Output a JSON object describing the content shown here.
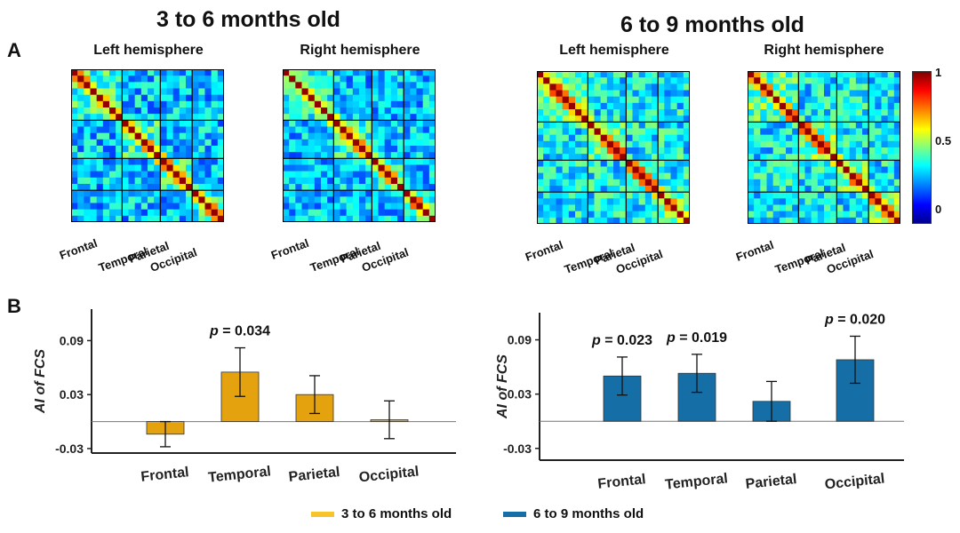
{
  "panel_a": {
    "label": "A",
    "groups": [
      {
        "title": "3 to 6 months old",
        "hemispheres": [
          "Left hemisphere",
          "Right hemisphere"
        ]
      },
      {
        "title": "6 to 9 months old",
        "hemispheres": [
          "Left hemisphere",
          "Right hemisphere"
        ]
      }
    ],
    "regions": [
      "Frontal",
      "Temporal",
      "Parietal",
      "Occipital"
    ],
    "colorbar": {
      "ticks": [
        "1",
        "0.5",
        "0"
      ]
    }
  },
  "panel_b": {
    "label": "B"
  },
  "colors": {
    "group1": "#E5A20F",
    "group2": "#156FA6",
    "legend_group1": "#F6C42C",
    "legend_group2": "#156FA6"
  },
  "legend": [
    "3 to 6 months old",
    "6 to 9 months old"
  ],
  "chart_data": [
    {
      "type": "heatmap",
      "title": "3 to 6 months old — Left hemisphere",
      "regions": [
        "Frontal",
        "Temporal",
        "Parietal",
        "Occipital"
      ],
      "region_sizes": [
        8,
        6,
        5,
        5
      ],
      "value_range": [
        0,
        1
      ]
    },
    {
      "type": "heatmap",
      "title": "3 to 6 months old — Right hemisphere",
      "regions": [
        "Frontal",
        "Temporal",
        "Parietal",
        "Occipital"
      ],
      "region_sizes": [
        8,
        6,
        5,
        5
      ],
      "value_range": [
        0,
        1
      ]
    },
    {
      "type": "heatmap",
      "title": "6 to 9 months old — Left hemisphere",
      "regions": [
        "Frontal",
        "Temporal",
        "Parietal",
        "Occipital"
      ],
      "region_sizes": [
        8,
        6,
        5,
        5
      ],
      "value_range": [
        0,
        1
      ]
    },
    {
      "type": "heatmap",
      "title": "6 to 9 months old — Right hemisphere",
      "regions": [
        "Frontal",
        "Temporal",
        "Parietal",
        "Occipital"
      ],
      "region_sizes": [
        8,
        6,
        5,
        5
      ],
      "value_range": [
        0,
        1
      ]
    },
    {
      "type": "bar",
      "title": "3 to 6 months old",
      "ylabel": "AI of FCS",
      "categories": [
        "Frontal",
        "Temporal",
        "Parietal",
        "Occipital"
      ],
      "values": [
        -0.014,
        0.055,
        0.03,
        0.002
      ],
      "error": [
        0.014,
        0.027,
        0.021,
        0.021
      ],
      "ylim": [
        -0.035,
        0.125
      ],
      "yticks": [
        -0.03,
        0.03,
        0.09
      ],
      "ytick_labels": [
        "-0.03",
        "0.03",
        "0.09"
      ],
      "annotations": [
        {
          "category": "Temporal",
          "text": "p = 0.034"
        }
      ]
    },
    {
      "type": "bar",
      "title": "6 to 9 months old",
      "ylabel": "AI of FCS",
      "categories": [
        "Frontal",
        "Temporal",
        "Parietal",
        "Occipital"
      ],
      "values": [
        0.05,
        0.053,
        0.022,
        0.068
      ],
      "error": [
        0.021,
        0.021,
        0.022,
        0.026
      ],
      "ylim": [
        -0.043,
        0.12
      ],
      "yticks": [
        -0.03,
        0.03,
        0.09
      ],
      "ytick_labels": [
        "-0.03",
        "0.03",
        "0.09"
      ],
      "annotations": [
        {
          "category": "Frontal",
          "text": "p = 0.023"
        },
        {
          "category": "Temporal",
          "text": "p = 0.019"
        },
        {
          "category": "Occipital",
          "text": "p = 0.020"
        }
      ]
    }
  ]
}
